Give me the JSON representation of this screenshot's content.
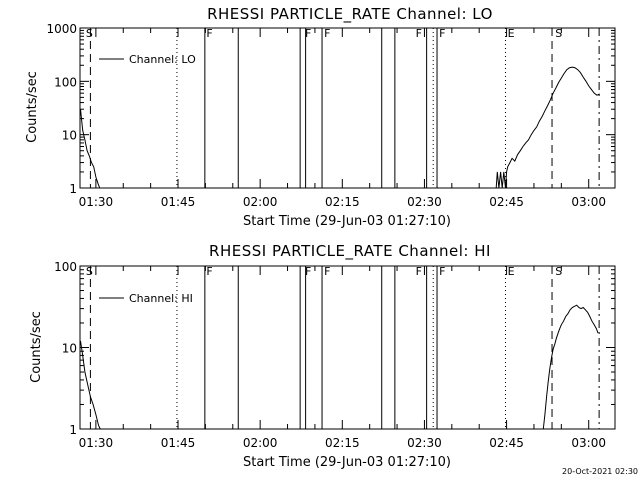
{
  "chart_data": [
    {
      "type": "line",
      "title": "RHESSI PARTICLE_RATE Channel: LO",
      "xlabel": "Start Time (29-Jun-03 01:27:10)",
      "ylabel": "Counts/sec",
      "yscale": "log",
      "ylim": [
        1,
        1000
      ],
      "xlim": [
        87.1,
        184.8
      ],
      "xunit": "minutes after 00:00 UT",
      "yticks": [
        {
          "value": 1,
          "label": "1"
        },
        {
          "value": 10,
          "label": "10"
        },
        {
          "value": 100,
          "label": "100"
        },
        {
          "value": 1000,
          "label": "1000"
        }
      ],
      "xticks": [
        {
          "value": 90,
          "label": "01:30"
        },
        {
          "value": 105,
          "label": "01:45"
        },
        {
          "value": 120,
          "label": "02:00"
        },
        {
          "value": 135,
          "label": "02:15"
        },
        {
          "value": 150,
          "label": "02:30"
        },
        {
          "value": 165,
          "label": "02:45"
        },
        {
          "value": 180,
          "label": "03:00"
        }
      ],
      "legend": {
        "label": "Channel: LO",
        "position": "top-left"
      },
      "series": [
        {
          "name": "Channel: LO",
          "x": [
            87.2,
            87.6,
            88.0,
            88.4,
            88.8,
            89.2,
            89.6,
            90.0,
            90.4,
            90.7,
            163.1,
            163.3,
            163.6,
            163.9,
            164.2,
            164.5,
            164.8,
            165.0,
            165.2,
            165.6,
            166.0,
            166.5,
            167.0,
            167.5,
            168.0,
            168.5,
            169.0,
            169.5,
            170.0,
            170.5,
            171.0,
            171.5,
            172.0,
            172.5,
            173.0,
            173.5,
            174.0,
            174.5,
            175.0,
            175.5,
            176.0,
            176.5,
            177.0,
            177.5,
            178.0,
            178.5,
            179.0,
            179.5,
            180.0,
            180.5,
            181.0,
            181.5,
            182.0
          ],
          "y": [
            30,
            12,
            8,
            5,
            4,
            3,
            2.5,
            1.6,
            1.2,
            1.0,
            1.0,
            2.0,
            1.0,
            2.0,
            1.0,
            2.0,
            1.0,
            2.0,
            2.5,
            3,
            3.6,
            3.2,
            4.2,
            5,
            6,
            7,
            8,
            10,
            12,
            14,
            18,
            22,
            28,
            35,
            45,
            60,
            75,
            95,
            115,
            140,
            165,
            180,
            185,
            180,
            165,
            145,
            120,
            100,
            82,
            70,
            60,
            55,
            58
          ]
        }
      ],
      "flags": [
        {
          "label": "S",
          "value": 88.0
        },
        {
          "label": "F",
          "value": 110.0
        },
        {
          "label": "F",
          "value": 128.0
        },
        {
          "label": "F",
          "value": 131.5
        },
        {
          "label": "F",
          "value": 148.2
        },
        {
          "label": "F",
          "value": 152.5
        },
        {
          "label": "E",
          "value": 165.0
        },
        {
          "label": "S",
          "value": 173.7
        }
      ]
    },
    {
      "type": "line",
      "title": "RHESSI PARTICLE_RATE Channel: HI",
      "xlabel": "Start Time (29-Jun-03 01:27:10)",
      "ylabel": "Counts/sec",
      "yscale": "log",
      "ylim": [
        1,
        100
      ],
      "xlim": [
        87.1,
        184.8
      ],
      "xunit": "minutes after 00:00 UT",
      "yticks": [
        {
          "value": 1,
          "label": "1"
        },
        {
          "value": 10,
          "label": "10"
        },
        {
          "value": 100,
          "label": "100"
        }
      ],
      "xticks": [
        {
          "value": 90,
          "label": "01:30"
        },
        {
          "value": 105,
          "label": "01:45"
        },
        {
          "value": 120,
          "label": "02:00"
        },
        {
          "value": 135,
          "label": "02:15"
        },
        {
          "value": 150,
          "label": "02:30"
        },
        {
          "value": 165,
          "label": "02:45"
        },
        {
          "value": 180,
          "label": "03:00"
        }
      ],
      "legend": {
        "label": "Channel: HI",
        "position": "top-left"
      },
      "series": [
        {
          "name": "Channel: HI",
          "x": [
            87.2,
            87.6,
            88.0,
            88.5,
            89.0,
            89.5,
            90.0,
            90.5,
            90.8,
            171.7,
            172.0,
            172.3,
            172.6,
            172.9,
            173.2,
            173.5,
            173.8,
            174.1,
            174.4,
            174.7,
            175.0,
            175.4,
            175.8,
            176.2,
            176.6,
            177.0,
            177.4,
            177.8,
            178.2,
            178.6,
            179.0,
            179.4,
            179.8,
            180.2,
            180.6,
            181.0,
            181.4,
            181.7
          ],
          "y": [
            12,
            8,
            5,
            3.5,
            2.5,
            2.0,
            1.5,
            1.1,
            1.0,
            1.0,
            1.5,
            2.5,
            3.8,
            5.5,
            7.5,
            9.5,
            11,
            13,
            15,
            17,
            19,
            21,
            24,
            26,
            29,
            31,
            32,
            33,
            31,
            30,
            31,
            29,
            27,
            24,
            21,
            19,
            17,
            15
          ]
        }
      ],
      "flags": [
        {
          "label": "S",
          "value": 88.0
        },
        {
          "label": "F",
          "value": 110.0
        },
        {
          "label": "F",
          "value": 128.0
        },
        {
          "label": "F",
          "value": 131.5
        },
        {
          "label": "F",
          "value": 148.2
        },
        {
          "label": "F",
          "value": 152.5
        },
        {
          "label": "E",
          "value": 165.0
        },
        {
          "label": "S",
          "value": 173.7
        }
      ]
    }
  ],
  "marker_lines": [
    {
      "kind": "dashed",
      "value": 89.0
    },
    {
      "kind": "dotted",
      "value": 104.8
    },
    {
      "kind": "solid",
      "value": 109.9
    },
    {
      "kind": "solid",
      "value": 116.0
    },
    {
      "kind": "solid",
      "value": 127.3
    },
    {
      "kind": "solid",
      "value": 128.3
    },
    {
      "kind": "solid",
      "value": 131.3
    },
    {
      "kind": "solid",
      "value": 142.2
    },
    {
      "kind": "solid",
      "value": 144.6
    },
    {
      "kind": "solid",
      "value": 150.4
    },
    {
      "kind": "dotted",
      "value": 151.6
    },
    {
      "kind": "solid",
      "value": 152.3
    },
    {
      "kind": "dotted",
      "value": 164.8
    },
    {
      "kind": "dashed",
      "value": 173.3
    },
    {
      "kind": "dashdot",
      "value": 181.9
    }
  ],
  "footer": {
    "timestamp": "20-Oct-2021 02:30"
  }
}
